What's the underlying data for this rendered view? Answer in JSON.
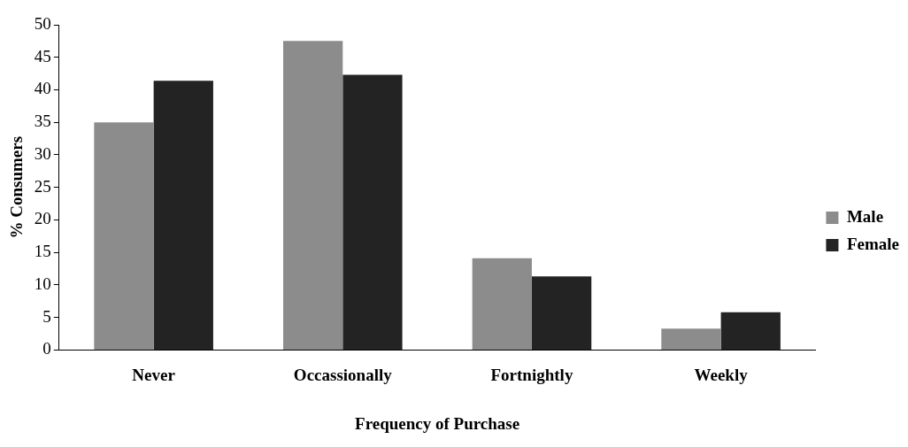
{
  "chart_data": {
    "type": "bar",
    "xlabel": "Frequency of Purchase",
    "ylabel": "% Consumers",
    "categories": [
      "Never",
      "Occassionally",
      "Fortnightly",
      "Weekly"
    ],
    "series": [
      {
        "name": "Male",
        "color": "#8c8c8c",
        "values": [
          35,
          47.5,
          14.1,
          3.3
        ]
      },
      {
        "name": "Female",
        "color": "#232323",
        "values": [
          41.4,
          42.3,
          11.3,
          5.8
        ]
      }
    ],
    "ylim": [
      0,
      50
    ],
    "yticks": [
      0,
      5,
      10,
      15,
      20,
      25,
      30,
      35,
      40,
      45,
      50
    ],
    "grid": false,
    "legend": "right"
  }
}
